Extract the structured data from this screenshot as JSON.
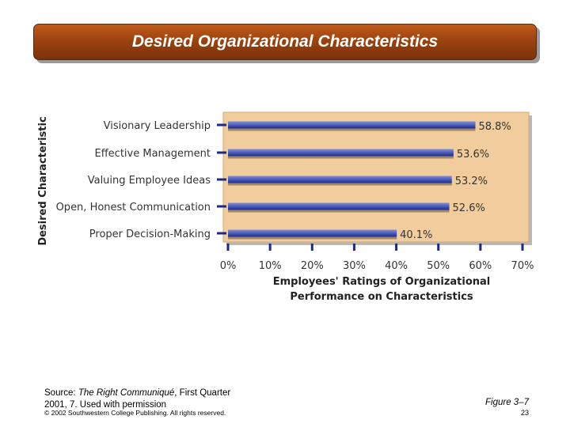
{
  "slide": {
    "title": "Desired Organizational Characteristics",
    "source_prefix": "Source: ",
    "source_title": "The Right Communiqué",
    "source_rest": ", First Quarter 2001, 7. Used with permission",
    "copyright": "© 2002 Southwestern College Publishing. All rights reserved.",
    "figure": "Figure 3–7",
    "page": "23"
  },
  "colors": {
    "panel": "#f1cc9c",
    "bar_light": "#7c8ee0",
    "bar_dark": "#1c2a8c",
    "tick": "#1c2a8c"
  },
  "chart_data": {
    "type": "bar",
    "orientation": "horizontal",
    "categories": [
      "Visionary Leadership",
      "Effective Management",
      "Valuing Employee Ideas",
      "Open, Honest Communication",
      "Proper Decision-Making"
    ],
    "values": [
      58.8,
      53.6,
      53.2,
      52.6,
      40.1
    ],
    "value_labels": [
      "58.8%",
      "53.6%",
      "53.2%",
      "52.6%",
      "40.1%"
    ],
    "xticks": [
      "0%",
      "10%",
      "20%",
      "30%",
      "40%",
      "50%",
      "60%",
      "70%"
    ],
    "xlim": [
      0,
      70
    ],
    "xlabel": [
      "Employees' Ratings of Organizational",
      "Performance on Characteristics"
    ],
    "ylabel": "Desired Characteristic"
  }
}
